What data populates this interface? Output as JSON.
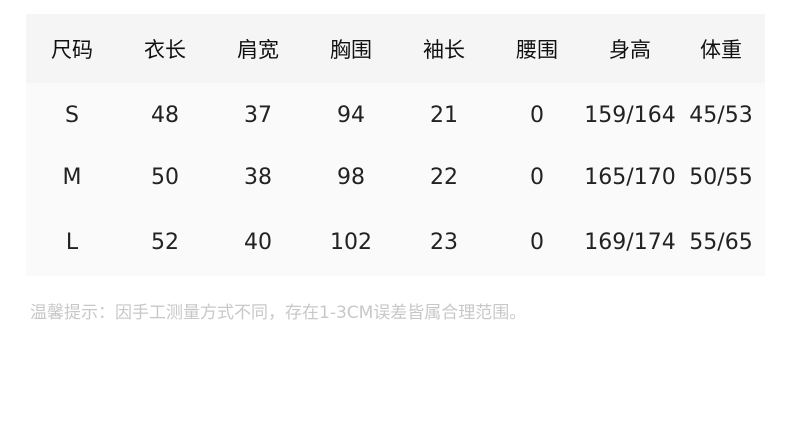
{
  "table": {
    "headers": [
      "尺码",
      "衣长",
      "肩宽",
      "胸围",
      "袖长",
      "腰围",
      "身高",
      "体重"
    ],
    "rows": [
      [
        "S",
        "48",
        "37",
        "94",
        "21",
        "0",
        "159/164",
        "45/53"
      ],
      [
        "M",
        "50",
        "38",
        "98",
        "22",
        "0",
        "165/170",
        "50/55"
      ],
      [
        "L",
        "52",
        "40",
        "102",
        "23",
        "0",
        "169/174",
        "55/65"
      ]
    ]
  },
  "note": "温馨提示：因手工测量方式不同，存在1-3CM误差皆属合理范围。"
}
